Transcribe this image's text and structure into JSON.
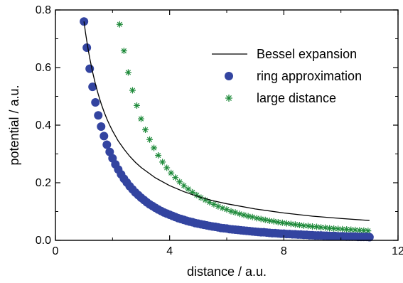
{
  "chart_data": {
    "type": "line",
    "title": "",
    "xlabel": "distance / a.u.",
    "ylabel": "potential / a.u.",
    "xlim": [
      0,
      12
    ],
    "ylim": [
      0,
      0.8
    ],
    "x_ticks": [
      "0",
      "4",
      "8",
      "12"
    ],
    "y_ticks": [
      "0.0",
      "0.2",
      "0.4",
      "0.6",
      "0.8"
    ],
    "grid": false,
    "legend_position": "top-right",
    "series": [
      {
        "name": "Bessel expansion",
        "style": "line",
        "color": "#000000",
        "x": [
          1.0,
          1.05,
          1.1,
          1.15,
          1.2,
          1.3,
          1.4,
          1.5,
          1.6,
          1.7,
          1.8,
          1.9,
          2.0,
          2.2,
          2.4,
          2.6,
          2.8,
          3.0,
          3.5,
          4.0,
          4.5,
          5.0,
          5.5,
          6.0,
          7.0,
          8.0,
          9.0,
          10.0,
          11.0
        ],
        "y": [
          0.76,
          0.723,
          0.691,
          0.661,
          0.633,
          0.585,
          0.543,
          0.507,
          0.475,
          0.447,
          0.422,
          0.4,
          0.38,
          0.345,
          0.317,
          0.292,
          0.271,
          0.253,
          0.217,
          0.19,
          0.169,
          0.152,
          0.138,
          0.127,
          0.109,
          0.095,
          0.084,
          0.076,
          0.069
        ]
      },
      {
        "name": "ring approximation",
        "style": "dots",
        "color": "#3344a0",
        "x": [
          1.0,
          1.1,
          1.2,
          1.3,
          1.4,
          1.5,
          1.6,
          1.7,
          1.8,
          1.9,
          2.0,
          2.1,
          2.2,
          2.3,
          2.4,
          2.5,
          2.6,
          2.7,
          2.8,
          2.9,
          3.0,
          3.1,
          3.2,
          3.3,
          3.4,
          3.5,
          3.6,
          3.7,
          3.8,
          3.9,
          4.0,
          4.1,
          4.2,
          4.3,
          4.4,
          4.5,
          4.6,
          4.7,
          4.8,
          4.9,
          5.0,
          5.1,
          5.2,
          5.3,
          5.4,
          5.5,
          5.6,
          5.7,
          5.8,
          5.9,
          6.0,
          6.1,
          6.2,
          6.3,
          6.4,
          6.5,
          6.6,
          6.7,
          6.8,
          6.9,
          7.0,
          7.1,
          7.2,
          7.3,
          7.4,
          7.5,
          7.6,
          7.7,
          7.8,
          7.9,
          8.0,
          8.1,
          8.2,
          8.3,
          8.4,
          8.5,
          8.6,
          8.7,
          8.8,
          8.9,
          9.0,
          9.1,
          9.2,
          9.3,
          9.4,
          9.5,
          9.6,
          9.7,
          9.8,
          9.9,
          10.0,
          10.1,
          10.2,
          10.3,
          10.4,
          10.5,
          10.6,
          10.7,
          10.8,
          10.9,
          11.0
        ],
        "y": [
          0.76,
          0.669,
          0.596,
          0.533,
          0.479,
          0.434,
          0.395,
          0.362,
          0.332,
          0.307,
          0.285,
          0.264,
          0.246,
          0.229,
          0.214,
          0.201,
          0.188,
          0.177,
          0.166,
          0.157,
          0.148,
          0.14,
          0.132,
          0.125,
          0.119,
          0.113,
          0.107,
          0.102,
          0.097,
          0.093,
          0.089,
          0.085,
          0.081,
          0.077,
          0.074,
          0.071,
          0.068,
          0.065,
          0.063,
          0.06,
          0.058,
          0.056,
          0.054,
          0.052,
          0.05,
          0.048,
          0.047,
          0.045,
          0.043,
          0.042,
          0.041,
          0.039,
          0.038,
          0.037,
          0.036,
          0.035,
          0.034,
          0.033,
          0.032,
          0.031,
          0.03,
          0.029,
          0.028,
          0.028,
          0.027,
          0.026,
          0.025,
          0.025,
          0.024,
          0.023,
          0.023,
          0.022,
          0.022,
          0.021,
          0.021,
          0.02,
          0.02,
          0.019,
          0.019,
          0.018,
          0.018,
          0.017,
          0.017,
          0.017,
          0.016,
          0.016,
          0.015,
          0.015,
          0.015,
          0.014,
          0.014,
          0.014,
          0.013,
          0.013,
          0.013,
          0.013,
          0.012,
          0.012,
          0.012,
          0.012,
          0.011
        ]
      },
      {
        "name": "large distance",
        "style": "stars",
        "color": "#1e8a3a",
        "x": [
          2.25,
          2.4,
          2.55,
          2.7,
          2.85,
          3.0,
          3.15,
          3.3,
          3.45,
          3.6,
          3.75,
          3.9,
          4.05,
          4.2,
          4.35,
          4.5,
          4.65,
          4.8,
          4.95,
          5.1,
          5.25,
          5.4,
          5.55,
          5.7,
          5.85,
          6.0,
          6.15,
          6.3,
          6.45,
          6.6,
          6.75,
          6.9,
          7.05,
          7.2,
          7.35,
          7.5,
          7.65,
          7.8,
          7.95,
          8.1,
          8.25,
          8.4,
          8.55,
          8.7,
          8.85,
          9.0,
          9.15,
          9.3,
          9.45,
          9.6,
          9.75,
          9.9,
          10.05,
          10.2,
          10.35,
          10.5,
          10.65,
          10.8,
          10.95
        ],
        "y": [
          0.75,
          0.658,
          0.583,
          0.521,
          0.468,
          0.422,
          0.384,
          0.35,
          0.321,
          0.295,
          0.272,
          0.252,
          0.234,
          0.218,
          0.203,
          0.19,
          0.178,
          0.167,
          0.157,
          0.148,
          0.14,
          0.132,
          0.125,
          0.118,
          0.112,
          0.107,
          0.101,
          0.097,
          0.092,
          0.088,
          0.084,
          0.081,
          0.077,
          0.074,
          0.071,
          0.068,
          0.066,
          0.063,
          0.061,
          0.059,
          0.057,
          0.055,
          0.053,
          0.051,
          0.05,
          0.048,
          0.047,
          0.045,
          0.044,
          0.042,
          0.041,
          0.04,
          0.039,
          0.038,
          0.037,
          0.036,
          0.035,
          0.034,
          0.033
        ]
      }
    ]
  }
}
